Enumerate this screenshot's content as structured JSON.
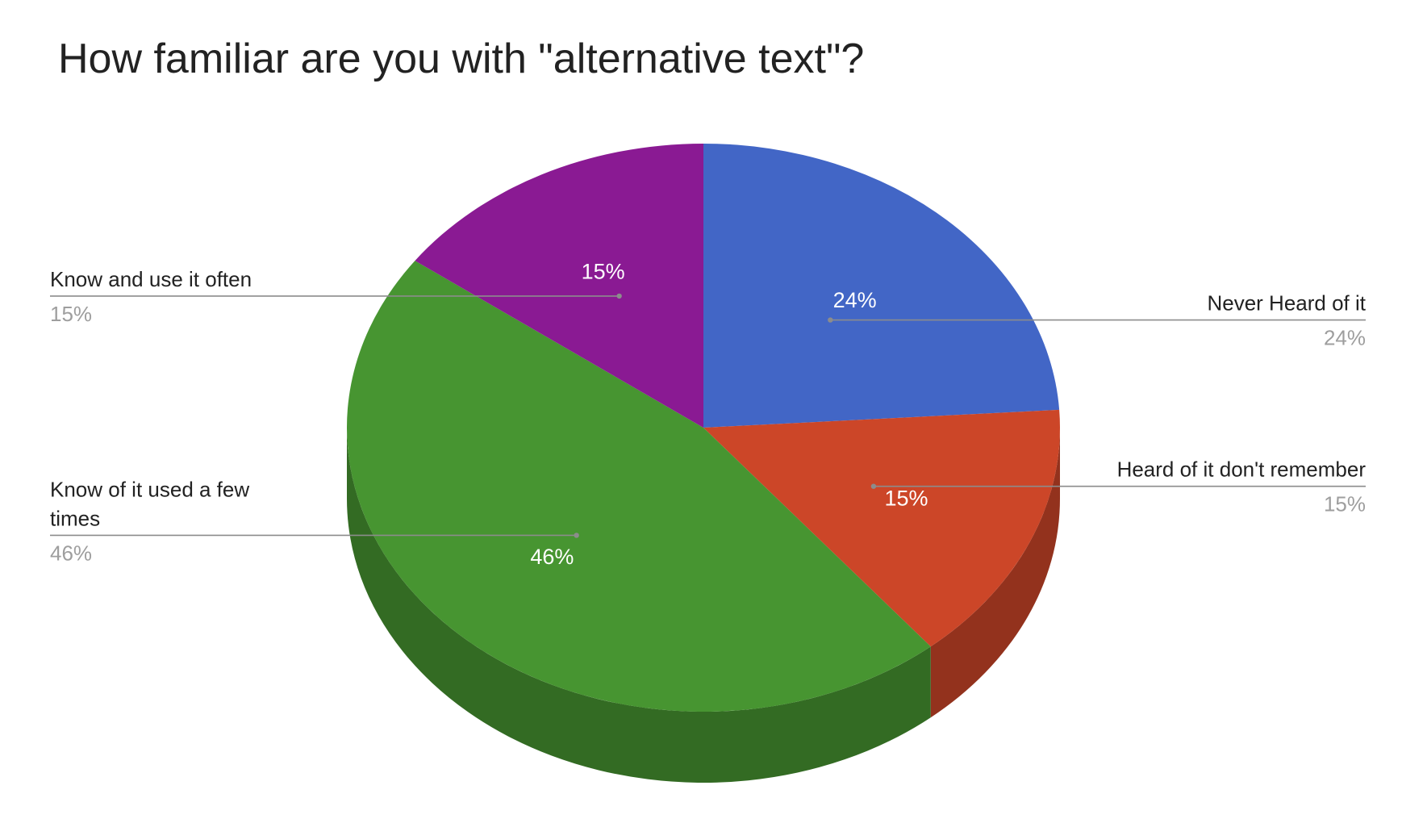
{
  "chart_data": {
    "type": "pie",
    "title": "How familiar are you with \"alternative text\"?",
    "three_d": true,
    "slices": [
      {
        "label": "Never Heard of it",
        "value": 24,
        "display": "24%",
        "color": "#4266c6"
      },
      {
        "label": "Heard of it don't remember",
        "value": 15,
        "display": "15%",
        "color": "#cc4628"
      },
      {
        "label": "Know of it used a few times",
        "value": 46,
        "display": "46%",
        "color": "#479531"
      },
      {
        "label": "Know and use it often",
        "value": 15,
        "display": "15%",
        "color": "#8a1a93"
      }
    ],
    "legend": "callout labels"
  }
}
